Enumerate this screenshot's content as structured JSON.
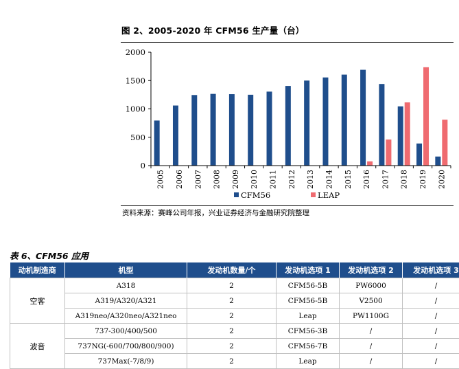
{
  "figure": {
    "title": "图 2、2005-2020 年 CFM56 生产量（台）",
    "source": "资料来源：赛峰公司年报，兴业证券经济与金融研究院整理"
  },
  "chart_data": {
    "type": "bar",
    "title": "图 2、2005-2020 年 CFM56 生产量（台）",
    "categories": [
      "2005",
      "2006",
      "2007",
      "2008",
      "2009",
      "2010",
      "2011",
      "2012",
      "2013",
      "2014",
      "2015",
      "2016",
      "2017",
      "2018",
      "2019",
      "2020"
    ],
    "series": [
      {
        "name": "CFM56",
        "color": "#1f4e8c",
        "values": [
          795,
          1060,
          1245,
          1265,
          1260,
          1250,
          1305,
          1405,
          1500,
          1555,
          1605,
          1690,
          1440,
          1045,
          390,
          160
        ]
      },
      {
        "name": "LEAP",
        "color": "#ef6b70",
        "values": [
          0,
          0,
          0,
          0,
          0,
          0,
          0,
          0,
          0,
          0,
          0,
          75,
          460,
          1115,
          1735,
          810
        ]
      }
    ],
    "ylim": [
      0,
      2000
    ],
    "yticks": [
      "0",
      "500",
      "1000",
      "1500",
      "2000"
    ],
    "legend_position": "bottom",
    "grid": false
  },
  "table": {
    "title": "表 6、CFM56 应用",
    "headers": [
      "动机制造商",
      "机型",
      "发动机数量/个",
      "发动机选项 1",
      "发动机选项 2",
      "发动机选项 3"
    ],
    "groups": [
      {
        "manufacturer": "空客",
        "rows": [
          [
            "A318",
            "2",
            "CFM56-5B",
            "PW6000",
            "/"
          ],
          [
            "A319/A320/A321",
            "2",
            "CFM56-5B",
            "V2500",
            "/"
          ],
          [
            "A319neo/A320neo/A321neo",
            "2",
            "Leap",
            "PW1100G",
            "/"
          ]
        ]
      },
      {
        "manufacturer": "波音",
        "rows": [
          [
            "737-300/400/500",
            "2",
            "CFM56-3B",
            "/",
            "/"
          ],
          [
            "737NG(-600/700/800/900)",
            "2",
            "CFM56-7B",
            "/",
            "/"
          ],
          [
            "737Max(-7/8/9)",
            "2",
            "Leap",
            "/",
            "/"
          ]
        ]
      }
    ]
  }
}
